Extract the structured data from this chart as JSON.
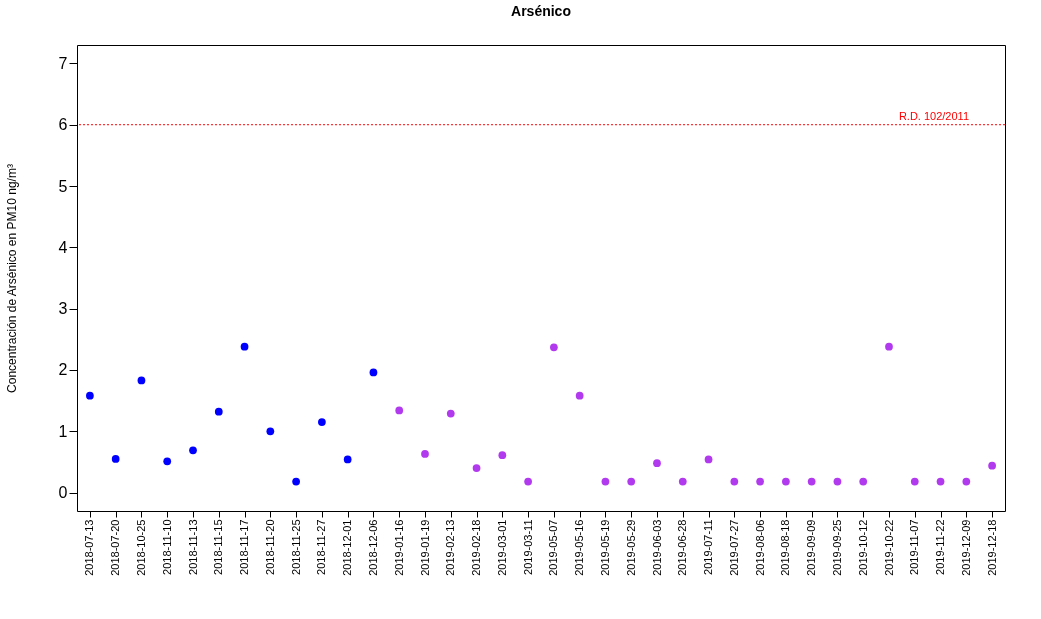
{
  "chart_data": {
    "type": "scatter",
    "title": "Arsénico",
    "ylabel": "Concentración de Arsénico en PM10 ng/m³",
    "categories": [
      "2018-07-13",
      "2018-07-20",
      "2018-10-25",
      "2018-11-10",
      "2018-11-13",
      "2018-11-15",
      "2018-11-17",
      "2018-11-20",
      "2018-11-25",
      "2018-11-27",
      "2018-12-01",
      "2018-12-06",
      "2019-01-16",
      "2019-01-19",
      "2019-02-13",
      "2019-02-18",
      "2019-03-01",
      "2019-03-11",
      "2019-05-07",
      "2019-05-16",
      "2019-05-19",
      "2019-05-29",
      "2019-06-03",
      "2019-06-28",
      "2019-07-11",
      "2019-07-27",
      "2019-08-06",
      "2019-08-18",
      "2019-09-09",
      "2019-09-25",
      "2019-10-12",
      "2019-10-22",
      "2019-11-07",
      "2019-11-22",
      "2019-12-09",
      "2019-12-18"
    ],
    "series": [
      {
        "color": "#0000ff",
        "values": [
          1.58,
          0.55,
          1.83,
          0.51,
          0.69,
          1.32,
          2.38,
          1.0,
          0.18,
          1.15,
          0.54,
          1.96,
          null,
          null,
          null,
          null,
          null,
          null,
          null,
          null,
          null,
          null,
          null,
          null,
          null,
          null,
          null,
          null,
          null,
          null,
          null,
          null,
          null,
          null,
          null,
          null
        ]
      },
      {
        "color": "#b23aee",
        "values": [
          null,
          null,
          null,
          null,
          null,
          null,
          null,
          null,
          null,
          null,
          null,
          null,
          1.34,
          0.63,
          1.29,
          0.4,
          0.61,
          0.18,
          2.37,
          1.58,
          0.18,
          0.18,
          0.48,
          0.18,
          0.54,
          0.18,
          0.18,
          0.18,
          0.18,
          0.18,
          0.18,
          2.38,
          0.18,
          0.18,
          0.18,
          0.44
        ]
      }
    ],
    "ylim": [
      -0.3,
      7.3
    ],
    "yticks": [
      0,
      1,
      2,
      3,
      4,
      5,
      6,
      7
    ],
    "grid": false,
    "legend": false,
    "marker": "circle",
    "ref_lines": [
      {
        "axis": "y",
        "value": 6,
        "label": "R.D. 102/2011",
        "color": "#ff0000",
        "line_style": "dotted"
      }
    ]
  }
}
